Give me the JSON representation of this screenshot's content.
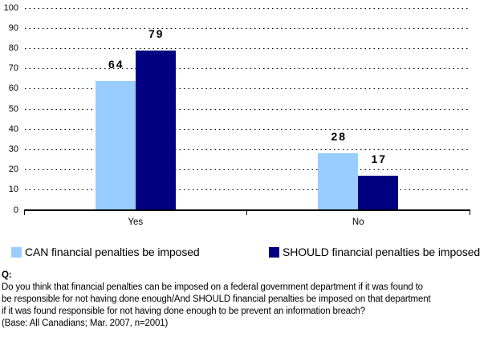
{
  "chart_data": {
    "type": "bar",
    "title": "",
    "xlabel": "",
    "ylabel": "",
    "categories": [
      "Yes",
      "No"
    ],
    "series": [
      {
        "name": "CAN financial penalties be imposed",
        "color": "#99CCFF",
        "values": [
          64,
          28
        ]
      },
      {
        "name": "SHOULD financial penalties be imposed",
        "color": "#000080",
        "values": [
          79,
          17
        ]
      }
    ],
    "ylim": [
      0,
      100
    ],
    "ytick_step": 10,
    "grid": "horizontal-dotted",
    "legend_position": "bottom",
    "value_labels_shown": true
  },
  "legend": {
    "item_can": "CAN financial penalties be imposed",
    "item_should": "SHOULD financial penalties be imposed"
  },
  "footnote": {
    "q_label": "Q:",
    "lines": [
      "Do you think that financial penalties can be imposed on a federal government department if it was found to",
      "be responsible for not having done enough/And SHOULD financial penalties be imposed on that department",
      "if it was found responsible for not having done enough to be prevent an information breach?",
      "(Base: All Canadians; Mar. 2007, n=2001)"
    ]
  }
}
